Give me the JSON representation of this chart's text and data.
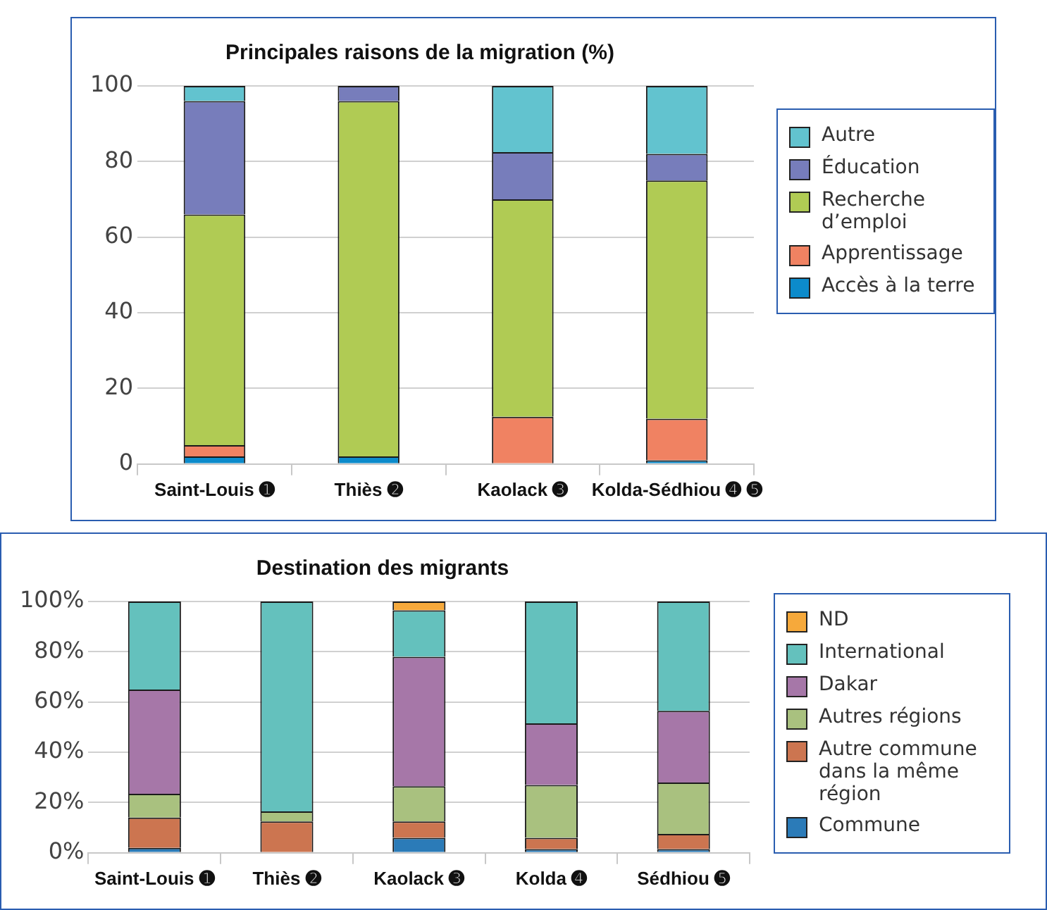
{
  "chart_data": [
    {
      "type": "bar",
      "stacked": true,
      "title": "Principales raisons de la migration (%)",
      "categories": [
        "Saint-Louis ➊",
        "Thiès ➋",
        "Kaolack ➌",
        "Kolda-Sédhiou ➍ ➎"
      ],
      "ylim": [
        0,
        100
      ],
      "yticks": [
        0,
        20,
        40,
        60,
        80,
        100
      ],
      "grid": "y",
      "legend": "right",
      "series": [
        {
          "name": "Accès à la terre",
          "color": "#0c8bcb",
          "values": [
            2,
            2,
            0,
            1
          ]
        },
        {
          "name": "Apprentissage",
          "color": "#f08262",
          "values": [
            3,
            0,
            12.5,
            11
          ]
        },
        {
          "name": "Recherche d’emploi",
          "color": "#b0cb54",
          "values": [
            61,
            94,
            57.5,
            63
          ]
        },
        {
          "name": "Éducation",
          "color": "#777dbb",
          "values": [
            30,
            4,
            12.5,
            7
          ]
        },
        {
          "name": "Autre",
          "color": "#62c3cf",
          "values": [
            4,
            0,
            17.5,
            18
          ]
        }
      ]
    },
    {
      "type": "bar",
      "stacked": true,
      "title": "Destination des migrants",
      "categories": [
        "Saint-Louis ➊",
        "Thiès ➋",
        "Kaolack ➌",
        "Kolda ➍",
        "Sédhiou ➎"
      ],
      "ylim": [
        0,
        100
      ],
      "yticks": [
        {
          "value": 0,
          "label": "0%"
        },
        {
          "value": 20,
          "label": "20%"
        },
        {
          "value": 40,
          "label": "40%"
        },
        {
          "value": 60,
          "label": "60%"
        },
        {
          "value": 80,
          "label": "80%"
        },
        {
          "value": 100,
          "label": "100%"
        }
      ],
      "grid": "y",
      "legend": "right",
      "series": [
        {
          "name": "Commune",
          "color": "#2b7bb8",
          "values": [
            2,
            0,
            6,
            1.5,
            1.5
          ]
        },
        {
          "name": "Autre commune dans la même région",
          "color": "#cc7550",
          "values": [
            12,
            12.5,
            6.5,
            4.5,
            6
          ]
        },
        {
          "name": "Autres régions",
          "color": "#a9c17f",
          "values": [
            9.5,
            4,
            14,
            21,
            20.5
          ]
        },
        {
          "name": "Dakar",
          "color": "#a677a8",
          "values": [
            41.5,
            0,
            51.5,
            24.5,
            28.5
          ]
        },
        {
          "name": "International",
          "color": "#64c1bd",
          "values": [
            35,
            83.5,
            18.5,
            48.5,
            43.5
          ]
        },
        {
          "name": "ND",
          "color": "#f6a93b",
          "values": [
            0,
            0,
            3.5,
            0,
            0
          ]
        }
      ]
    }
  ]
}
